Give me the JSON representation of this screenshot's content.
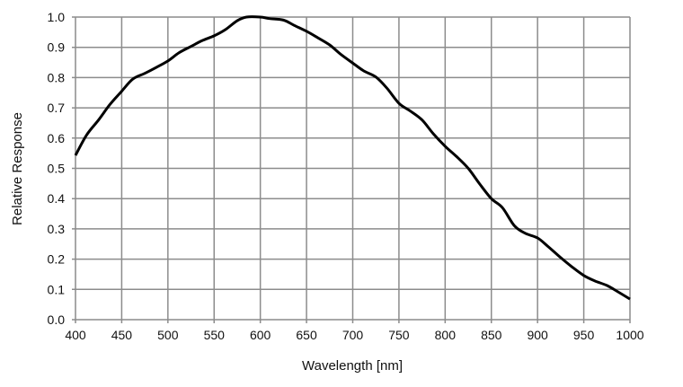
{
  "chart_data": {
    "type": "line",
    "title": "",
    "xlabel": "Wavelength [nm]",
    "ylabel": "Relative Response",
    "xlim": [
      400,
      1000
    ],
    "ylim": [
      0,
      1.0
    ],
    "xticks": [
      400,
      450,
      500,
      550,
      600,
      650,
      700,
      750,
      800,
      850,
      900,
      950,
      1000
    ],
    "yticks": [
      "0.0",
      "0.1",
      "0.2",
      "0.3",
      "0.4",
      "0.5",
      "0.6",
      "0.7",
      "0.8",
      "0.9",
      "1.0"
    ],
    "grid": true,
    "line_color": "#000000",
    "grid_color": "#8c8c8c",
    "series": [
      {
        "x": [
          400,
          412,
          425,
          437,
          450,
          462,
          475,
          487,
          500,
          512,
          525,
          537,
          550,
          562,
          575,
          585,
          600,
          610,
          625,
          637,
          650,
          662,
          675,
          687,
          700,
          712,
          725,
          737,
          750,
          762,
          775,
          787,
          800,
          812,
          825,
          837,
          850,
          862,
          875,
          887,
          900,
          912,
          925,
          937,
          950,
          962,
          975,
          987,
          1000
        ],
        "y": [
          0.543,
          0.61,
          0.66,
          0.71,
          0.755,
          0.795,
          0.814,
          0.833,
          0.855,
          0.882,
          0.903,
          0.922,
          0.938,
          0.958,
          0.988,
          1.0,
          1.0,
          0.995,
          0.99,
          0.972,
          0.953,
          0.932,
          0.908,
          0.877,
          0.848,
          0.822,
          0.802,
          0.765,
          0.715,
          0.69,
          0.66,
          0.615,
          0.573,
          0.54,
          0.5,
          0.45,
          0.4,
          0.37,
          0.31,
          0.285,
          0.27,
          0.24,
          0.205,
          0.175,
          0.146,
          0.128,
          0.113,
          0.092,
          0.068
        ]
      }
    ]
  }
}
